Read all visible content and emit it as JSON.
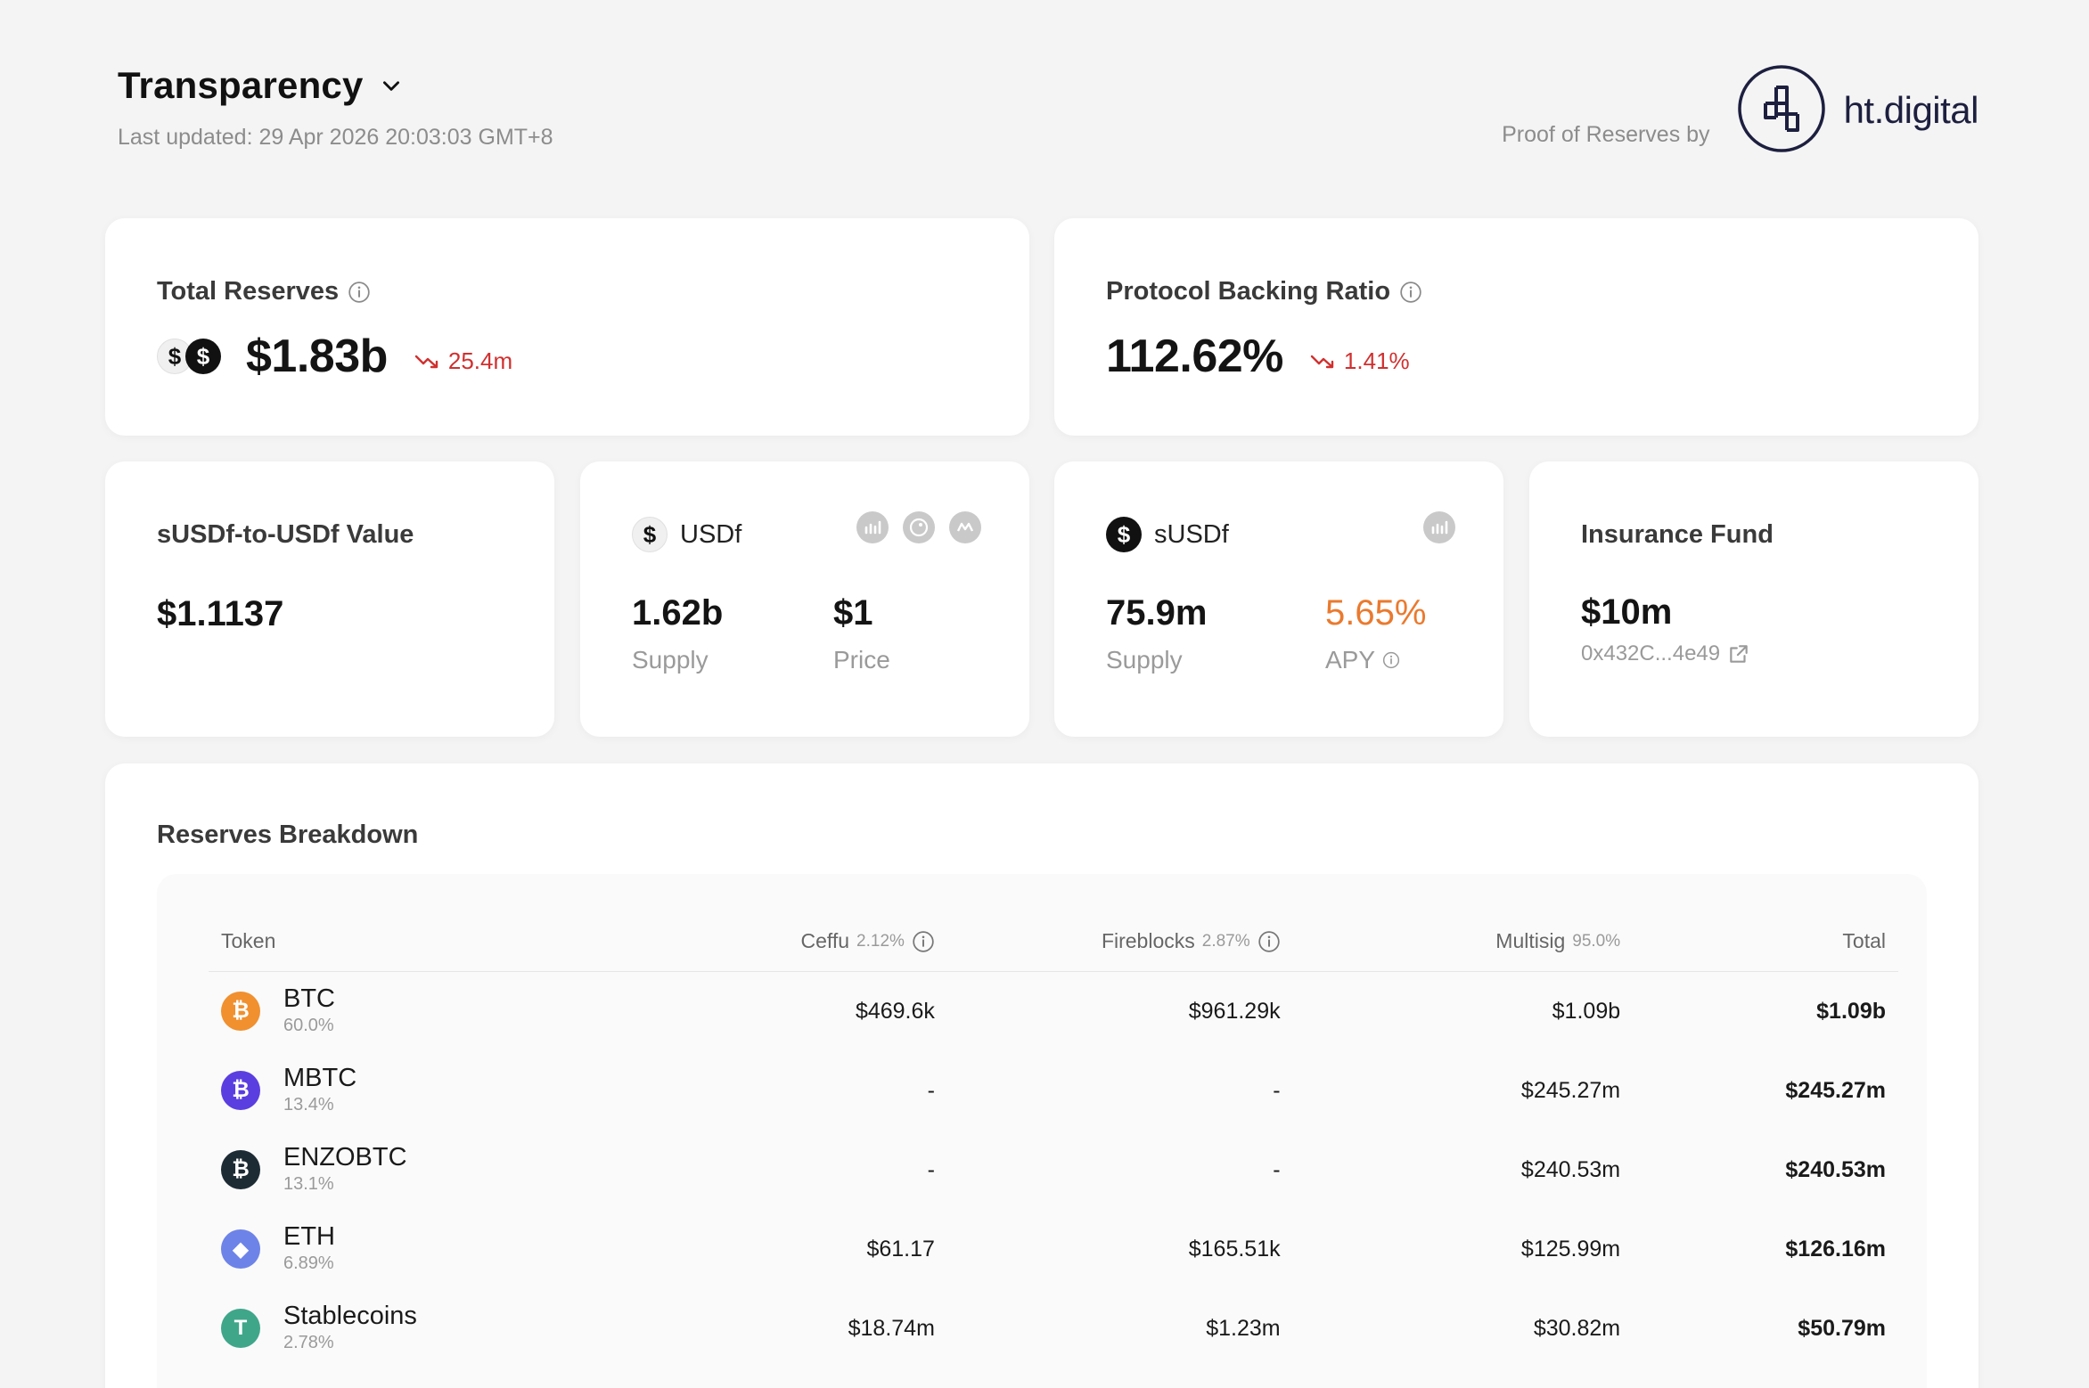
{
  "header": {
    "title": "Transparency",
    "last_updated": "Last updated: 29 Apr 2026 20:03:03 GMT+8",
    "proof_by": "Proof of Reserves by",
    "brand_name": "ht.digital"
  },
  "total_reserves": {
    "label": "Total Reserves",
    "value": "$1.83b",
    "delta": "25.4m",
    "delta_color": "#d0302f"
  },
  "backing_ratio": {
    "label": "Protocol Backing Ratio",
    "value": "112.62%",
    "delta": "1.41%"
  },
  "susdf_value": {
    "label": "sUSDf-to-USDf Value",
    "value": "$1.1137"
  },
  "usdf": {
    "label": "USDf",
    "supply_value": "1.62b",
    "supply_label": "Supply",
    "price_value": "$1",
    "price_label": "Price",
    "icons": [
      "chart-icon",
      "gecko-icon",
      "coinmarketcap-icon"
    ]
  },
  "susdf": {
    "label": "sUSDf",
    "supply_value": "75.9m",
    "supply_label": "Supply",
    "apy_value": "5.65%",
    "apy_label": "APY",
    "apy_color": "#ea7a2e"
  },
  "insurance": {
    "label": "Insurance Fund",
    "value": "$10m",
    "address": "0x432C...4e49"
  },
  "reserves": {
    "title": "Reserves Breakdown",
    "columns": {
      "token": "Token",
      "ceffu": "Ceffu",
      "ceffu_pct": "2.12%",
      "fireblocks": "Fireblocks",
      "fireblocks_pct": "2.87%",
      "multisig": "Multisig",
      "multisig_pct": "95.0%",
      "total": "Total"
    },
    "rows": [
      {
        "name": "BTC",
        "pct": "60.0%",
        "ceffu": "$469.6k",
        "fireblocks": "$961.29k",
        "multisig": "$1.09b",
        "total": "$1.09b",
        "color": "#f0902f",
        "glyph": "₿"
      },
      {
        "name": "MBTC",
        "pct": "13.4%",
        "ceffu": "-",
        "fireblocks": "-",
        "multisig": "$245.27m",
        "total": "$245.27m",
        "color": "#5b3ee0",
        "glyph": "₿"
      },
      {
        "name": "ENZOBTC",
        "pct": "13.1%",
        "ceffu": "-",
        "fireblocks": "-",
        "multisig": "$240.53m",
        "total": "$240.53m",
        "color": "#1d2b35",
        "glyph": "₿"
      },
      {
        "name": "ETH",
        "pct": "6.89%",
        "ceffu": "$61.17",
        "fireblocks": "$165.51k",
        "multisig": "$125.99m",
        "total": "$126.16m",
        "color": "#6d83e8",
        "glyph": "◆"
      },
      {
        "name": "Stablecoins",
        "pct": "2.78%",
        "ceffu": "$18.74m",
        "fireblocks": "$1.23m",
        "multisig": "$30.82m",
        "total": "$50.79m",
        "color": "#3fa68a",
        "glyph": "T"
      }
    ]
  }
}
